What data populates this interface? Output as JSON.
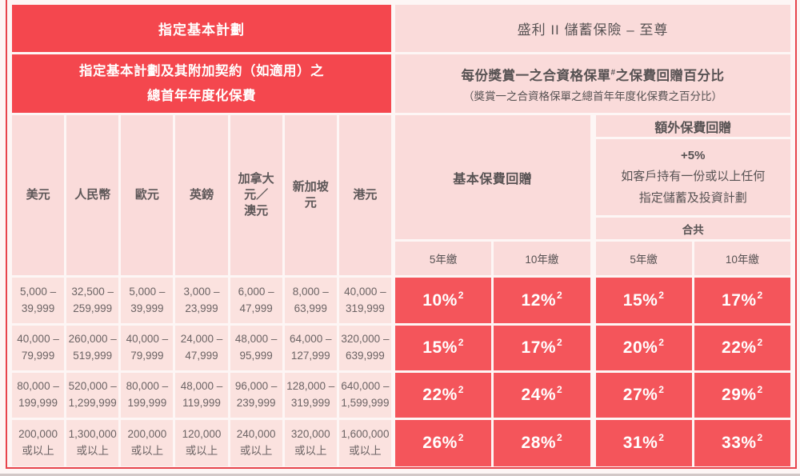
{
  "colors": {
    "header_red": "#f4474e",
    "data_cell_red": "#f4555b",
    "header_pink": "#fadbda",
    "data_pink": "#fbe2df",
    "frame_red": "#e7444c",
    "dark_text": "#575253",
    "white_text": "#ffffff"
  },
  "left": {
    "header1": "指定基本計劃",
    "header2": "指定基本計劃及其附加契約（如適用）之\n總首年年度化保費",
    "currencies": [
      "美元",
      "人民幣",
      "歐元",
      "英鎊",
      "加拿大\n元／\n澳元",
      "新加坡\n元",
      "港元"
    ],
    "rows": [
      [
        "5,000 –\n39,999",
        "32,500 –\n259,999",
        "5,000 –\n39,999",
        "3,000 –\n23,999",
        "6,000 –\n47,999",
        "8,000 –\n63,999",
        "40,000 –\n319,999"
      ],
      [
        "40,000 –\n79,999",
        "260,000 –\n519,999",
        "40,000 –\n79,999",
        "24,000 –\n47,999",
        "48,000 –\n95,999",
        "64,000 –\n127,999",
        "320,000 –\n639,999"
      ],
      [
        "80,000 –\n199,999",
        "520,000 –\n1,299,999",
        "80,000 –\n199,999",
        "48,000 –\n119,999",
        "96,000 –\n239,999",
        "128,000 –\n319,999",
        "640,000 –\n1,599,999"
      ],
      [
        "200,000\n或以上",
        "1,300,000\n或以上",
        "200,000\n或以上",
        "120,000\n或以上",
        "240,000\n或以上",
        "320,000\n或以上",
        "1,600,000\n或以上"
      ]
    ]
  },
  "right": {
    "header1": "盛利 II 儲蓄保險 – 至尊",
    "header2_prefix": "每份獎賞一之合資格保單",
    "header2_sup": "#",
    "header2_suffix": "之保費回贈百分比",
    "header2_sub": "（獎賞一之合資格保單之總首年年度化保費之百分比）",
    "basic_label": "基本保費回贈",
    "extra_label": "額外保費回贈",
    "extra_bonus": "+5%",
    "extra_desc": "如客戶持有一份或以上任何\n指定儲蓄及投資計劃",
    "total_label": "合共",
    "terms": [
      "5年繳",
      "10年繳",
      "5年繳",
      "10年繳"
    ],
    "pct_sup": "2",
    "pct_rows": [
      [
        "10%",
        "12%",
        "15%",
        "17%"
      ],
      [
        "15%",
        "17%",
        "20%",
        "22%"
      ],
      [
        "22%",
        "24%",
        "27%",
        "29%"
      ],
      [
        "26%",
        "28%",
        "31%",
        "33%"
      ]
    ]
  }
}
